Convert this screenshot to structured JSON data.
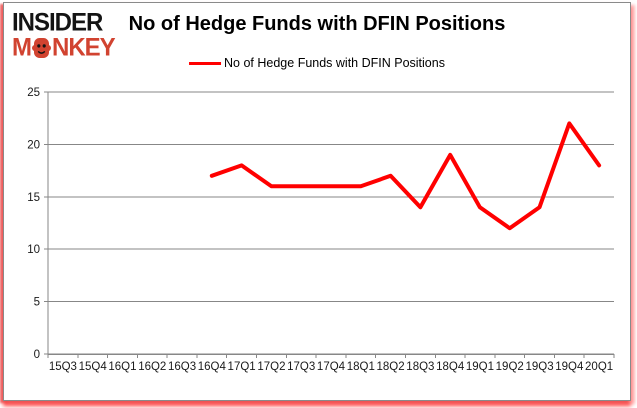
{
  "logo": {
    "line1": "INSIDER",
    "line2_prefix": "M",
    "line2_suffix": "NKEY",
    "brand_color": "#d14330",
    "text_color": "#141414"
  },
  "header": {
    "title": "No of Hedge Funds with DFIN Positions"
  },
  "legend": {
    "label": "No of Hedge Funds with DFIN Positions",
    "line_color": "#ff0000"
  },
  "chart_data": {
    "type": "line",
    "title": "No of Hedge Funds with DFIN Positions",
    "categories": [
      "15Q3",
      "15Q4",
      "16Q1",
      "16Q2",
      "16Q3",
      "16Q4",
      "17Q1",
      "17Q2",
      "17Q3",
      "17Q4",
      "18Q1",
      "18Q2",
      "18Q3",
      "18Q4",
      "19Q1",
      "19Q2",
      "19Q3",
      "19Q4",
      "20Q1"
    ],
    "series": [
      {
        "name": "No of Hedge Funds with DFIN Positions",
        "color": "#ff0000",
        "values": [
          null,
          null,
          null,
          null,
          null,
          17,
          18,
          16,
          16,
          16,
          16,
          17,
          14,
          19,
          14,
          12,
          14,
          22,
          18
        ]
      }
    ],
    "xlabel": "",
    "ylabel": "",
    "ylim": [
      0,
      25
    ],
    "yticks": [
      0,
      5,
      10,
      15,
      20,
      25
    ],
    "grid": "horizontal",
    "legend_position": "top-center",
    "gridline_color": "#878787",
    "axis_color": "#878787",
    "tick_label_color": "#1a1a1a"
  }
}
